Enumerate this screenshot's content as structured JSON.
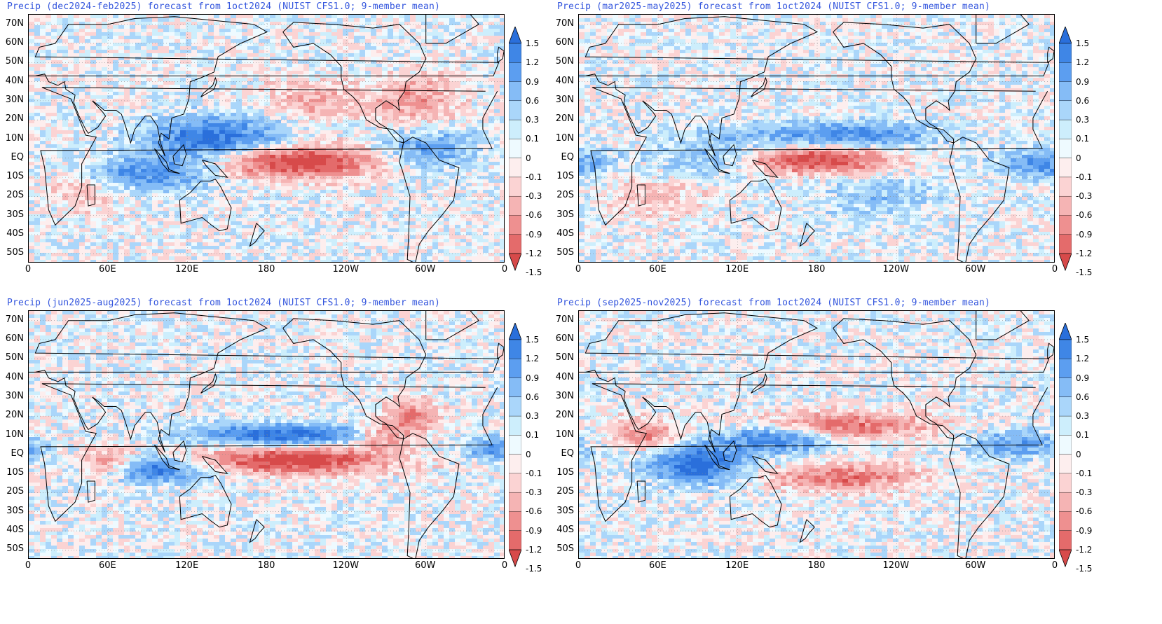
{
  "panels": [
    {
      "title": "Precip (dec2024-feb2025) forecast from 1oct2024 (NUIST CFS1.0; 9-member mean)",
      "pattern": "enso-warm-dry"
    },
    {
      "title": "Precip (mar2025-may2025) forecast from 1oct2024 (NUIST CFS1.0; 9-member mean)",
      "pattern": "enso-dry-wide"
    },
    {
      "title": "Precip (jun2025-aug2025) forecast from 1oct2024 (NUIST CFS1.0; 9-member mean)",
      "pattern": "itcz-wet-band"
    },
    {
      "title": "Precip (sep2025-nov2025) forecast from 1oct2024 (NUIST CFS1.0; 9-member mean)",
      "pattern": "indian-ocean-wet"
    }
  ],
  "lat_labels": [
    "70N",
    "60N",
    "50N",
    "40N",
    "30N",
    "20N",
    "10N",
    "EQ",
    "10S",
    "20S",
    "30S",
    "40S",
    "50S"
  ],
  "lon_labels": [
    "0",
    "60E",
    "120E",
    "180",
    "120W",
    "60W",
    "0"
  ],
  "colorbar": {
    "labels": [
      "1.5",
      "1.2",
      "0.9",
      "0.6",
      "0.3",
      "0.1",
      "0",
      "-0.1",
      "-0.3",
      "-0.6",
      "-0.9",
      "-1.2",
      "-1.5"
    ],
    "colors": [
      "#2a6fdb",
      "#3f86e6",
      "#5c9ef0",
      "#85bcf6",
      "#aad6fa",
      "#cdeefc",
      "#eefaff",
      "#fdeeee",
      "#fbd3d3",
      "#f5b4b4",
      "#ee9090",
      "#e46b6b",
      "#d74a4a"
    ]
  }
}
